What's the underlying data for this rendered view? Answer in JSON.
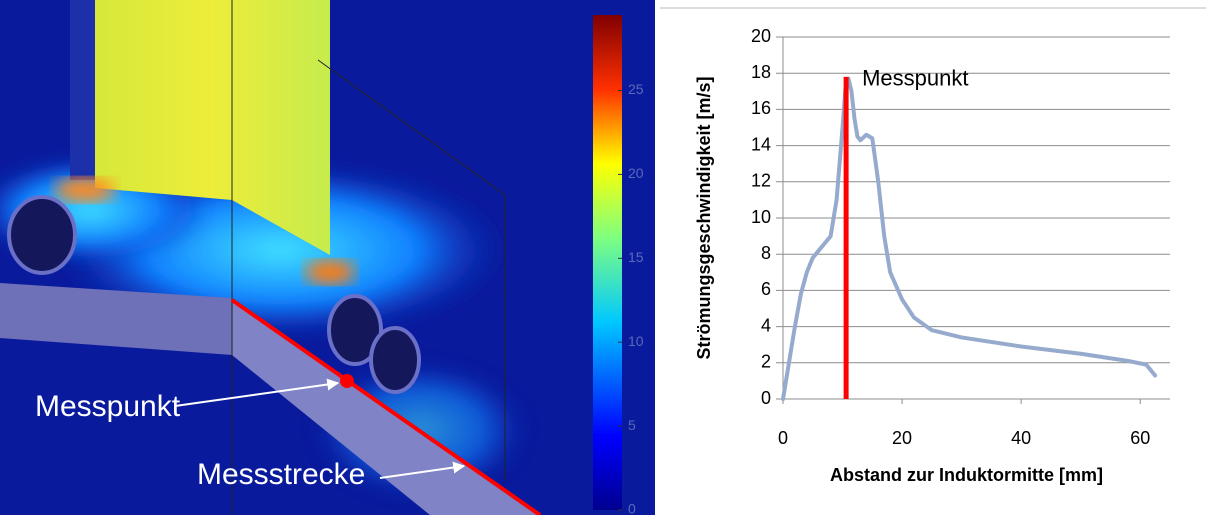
{
  "simulation": {
    "colorbar": {
      "lim": [
        0,
        29.5
      ],
      "ticks": [
        0,
        5,
        10,
        15,
        20,
        25
      ]
    },
    "annotations": [
      "Messpunkt",
      "Messstrecke"
    ]
  },
  "chart_data": {
    "type": "line",
    "x_label": "Abstand zur Induktormitte [mm]",
    "y_label": "Strömungsgeschwindigkeit [m/s]",
    "x": [
      0,
      1,
      2,
      3,
      4,
      5,
      6,
      7,
      8,
      9,
      10,
      10.5,
      11,
      11.5,
      12,
      12.5,
      13,
      14,
      15,
      16,
      17,
      18,
      20,
      22,
      25,
      30,
      40,
      50,
      58,
      61,
      62,
      62.5
    ],
    "values": [
      0,
      2,
      4,
      5.8,
      7,
      7.8,
      8.2,
      8.6,
      9,
      11,
      15,
      17.2,
      17.7,
      17,
      15.5,
      14.5,
      14.3,
      14.6,
      14.4,
      12,
      9,
      7,
      5.5,
      4.5,
      3.8,
      3.4,
      2.9,
      2.5,
      2.1,
      1.9,
      1.5,
      1.3
    ],
    "color": "#95aacd",
    "marker_line": {
      "x": 10.6,
      "y": [
        0,
        17.8
      ],
      "color": "#ff0000",
      "label": "Messpunkt"
    },
    "xlim": [
      0,
      65
    ],
    "xticks": [
      0,
      20,
      40,
      60
    ],
    "ylim": [
      0,
      20
    ],
    "yticks": [
      0,
      2,
      4,
      6,
      8,
      10,
      12,
      14,
      16,
      18,
      20
    ],
    "grid": true
  }
}
